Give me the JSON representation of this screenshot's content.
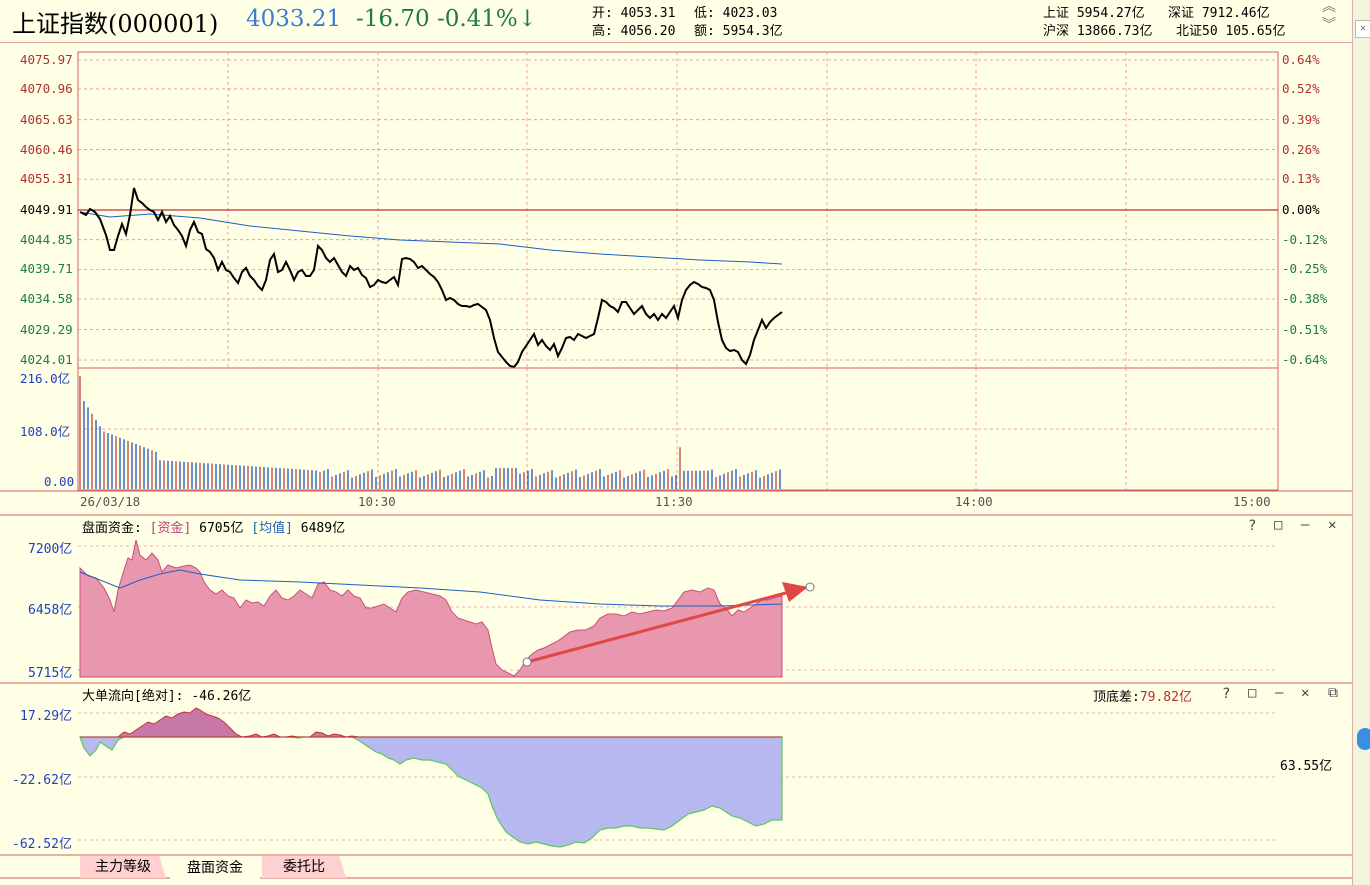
{
  "header": {
    "title": "上证指数(000001)",
    "price": "4033.21",
    "change": "-16.70",
    "change_pct": "-0.41%",
    "arrow": "↓",
    "open_label": "开:",
    "open": "4053.31",
    "low_label": "低:",
    "low": "4023.03",
    "high_label": "高:",
    "high": "4056.20",
    "amount_label": "额:",
    "amount": "5954.3亿",
    "sh_label": "上证",
    "sh": "5954.27亿",
    "sz_label": "深证",
    "sz": "7912.46亿",
    "hs_label": "沪深",
    "hs": "13866.73亿",
    "bz_label": "北证50",
    "bz": "105.65亿"
  },
  "price_chart": {
    "y_left": [
      "4075.97",
      "4070.96",
      "4065.63",
      "4060.46",
      "4055.31",
      "4049.91",
      "4044.85",
      "4039.71",
      "4034.58",
      "4029.29",
      "4024.01"
    ],
    "y_right": [
      "0.64%",
      "0.52%",
      "0.39%",
      "0.26%",
      "0.13%",
      "0.00%",
      "-0.12%",
      "-0.25%",
      "-0.38%",
      "-0.51%",
      "-0.64%"
    ],
    "vol_ticks": [
      "216.0亿",
      "108.0亿",
      "0.00"
    ],
    "time_labels": [
      "26/03/18",
      "10:30",
      "11:30",
      "14:00",
      "15:00"
    ],
    "prev_close": 4049.91,
    "ymin": 4024.01,
    "ymax": 4075.97
  },
  "capital_panel": {
    "label": "盘面资金:",
    "fund_label": "[资金]",
    "fund_value": "6705亿",
    "avg_label": "[均值]",
    "avg_value": "6489亿",
    "y_ticks": [
      "7200亿",
      "6458亿",
      "5715亿"
    ]
  },
  "bigorder_panel": {
    "label": "大单流向[绝对]:",
    "value": "-46.26亿",
    "spread_label": "顶底差:",
    "spread_value": "79.82亿",
    "y_ticks": [
      "17.29亿",
      "-22.62亿",
      "-62.52亿"
    ],
    "right_value": "63.55亿"
  },
  "tabs": [
    "主力等级",
    "盘面资金",
    "委托比"
  ],
  "colors": {
    "up": "#B03030",
    "down": "#1D7A4A",
    "price": "#3A7BD5",
    "avg": "#1E5FBF",
    "fund_fill": "#E897AE",
    "flow_neg": "#B8B8F0",
    "flow_pos": "#C878A8"
  }
}
